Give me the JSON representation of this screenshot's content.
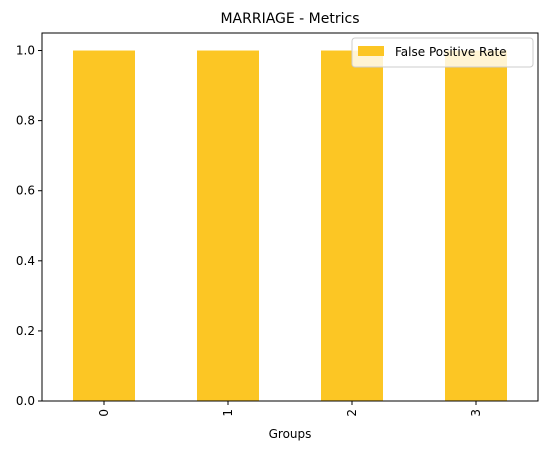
{
  "chart_data": {
    "type": "bar",
    "title": "MARRIAGE - Metrics",
    "xlabel": "Groups",
    "ylabel": "",
    "categories": [
      "0",
      "1",
      "2",
      "3"
    ],
    "series": [
      {
        "name": "False Positive Rate",
        "values": [
          1.0,
          1.0,
          1.0,
          1.0
        ],
        "color": "#fcc624"
      }
    ],
    "ylim": [
      0,
      1.05
    ],
    "yticks": [
      "0.0",
      "0.2",
      "0.4",
      "0.6",
      "0.8",
      "1.0"
    ],
    "grid": false,
    "legend_position": "upper-right"
  }
}
